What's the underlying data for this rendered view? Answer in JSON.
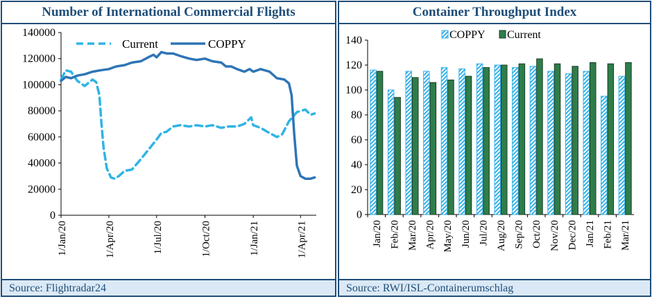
{
  "chart_data": [
    {
      "type": "line",
      "title": "Number of International Commercial Flights",
      "source": "Source:  Flightradar24",
      "ylim": [
        0,
        140000
      ],
      "yticks": [
        0,
        20000,
        40000,
        60000,
        80000,
        100000,
        120000,
        140000
      ],
      "xticks": [
        "1/Jan/20",
        "1/Apr/20",
        "1/Jul/20",
        "1/Oct/20",
        "1/Jan/21",
        "1/Apr/21"
      ],
      "legend_position": "top",
      "series": [
        {
          "name": "Current",
          "style": "dashed",
          "color": "#2fb4e6",
          "x": [
            "2020-01-01",
            "2020-01-10",
            "2020-01-20",
            "2020-02-01",
            "2020-02-15",
            "2020-03-01",
            "2020-03-08",
            "2020-03-14",
            "2020-03-18",
            "2020-03-22",
            "2020-03-28",
            "2020-04-05",
            "2020-04-12",
            "2020-04-20",
            "2020-05-01",
            "2020-05-15",
            "2020-06-01",
            "2020-06-15",
            "2020-07-01",
            "2020-07-10",
            "2020-07-20",
            "2020-08-01",
            "2020-08-15",
            "2020-09-01",
            "2020-09-15",
            "2020-10-01",
            "2020-10-15",
            "2020-11-01",
            "2020-11-15",
            "2020-12-01",
            "2020-12-15",
            "2020-12-28",
            "2021-01-01",
            "2021-01-15",
            "2021-02-01",
            "2021-02-15",
            "2021-02-25",
            "2021-03-10",
            "2021-03-25",
            "2021-04-10",
            "2021-04-20",
            "2021-04-28"
          ],
          "y": [
            104000,
            111000,
            110000,
            103000,
            99000,
            104000,
            102000,
            92000,
            70000,
            52000,
            36000,
            29000,
            28000,
            30000,
            34000,
            35000,
            43000,
            50000,
            58000,
            63000,
            64000,
            68000,
            69000,
            68000,
            69000,
            68000,
            69000,
            67000,
            68000,
            68000,
            70000,
            75000,
            69000,
            67000,
            63000,
            60000,
            62000,
            72000,
            79000,
            81000,
            77000,
            78000
          ]
        },
        {
          "name": "COPPY",
          "style": "solid",
          "color": "#2e75b6",
          "x": [
            "2020-01-01",
            "2020-01-10",
            "2020-01-20",
            "2020-02-01",
            "2020-02-15",
            "2020-03-01",
            "2020-03-15",
            "2020-04-01",
            "2020-04-15",
            "2020-05-01",
            "2020-05-15",
            "2020-06-01",
            "2020-06-15",
            "2020-06-25",
            "2020-07-01",
            "2020-07-10",
            "2020-07-20",
            "2020-08-01",
            "2020-08-15",
            "2020-09-01",
            "2020-09-15",
            "2020-10-01",
            "2020-10-15",
            "2020-11-01",
            "2020-11-10",
            "2020-11-20",
            "2020-12-01",
            "2020-12-15",
            "2020-12-25",
            "2021-01-01",
            "2021-01-15",
            "2021-02-01",
            "2021-02-15",
            "2021-03-01",
            "2021-03-10",
            "2021-03-15",
            "2021-03-20",
            "2021-03-25",
            "2021-04-01",
            "2021-04-10",
            "2021-04-20",
            "2021-04-28"
          ],
          "y": [
            103000,
            106000,
            105000,
            107000,
            108000,
            110000,
            111000,
            112000,
            114000,
            115000,
            117000,
            118000,
            121000,
            123000,
            121000,
            125000,
            124000,
            124000,
            122000,
            120000,
            119000,
            120000,
            118000,
            117000,
            114000,
            114000,
            112000,
            110000,
            112000,
            110000,
            112000,
            110000,
            105000,
            104000,
            101000,
            92000,
            62000,
            38000,
            30000,
            28000,
            28000,
            29000
          ]
        }
      ]
    },
    {
      "type": "bar",
      "title": "Container Throughput Index",
      "source": "Source: RWI/ISL-Containerumschlag",
      "ylim": [
        0,
        140
      ],
      "yticks": [
        0,
        20,
        40,
        60,
        80,
        100,
        120,
        140
      ],
      "legend_position": "top",
      "categories": [
        "Jan/20",
        "Feb/20",
        "Mar/20",
        "Apr/20",
        "May/20",
        "Jun/20",
        "Jul/20",
        "Aug/20",
        "Sep/20",
        "Oct/20",
        "Nov/20",
        "Dec/20",
        "Jan/21",
        "Feb/21",
        "Mar/21"
      ],
      "series": [
        {
          "name": "COPPY",
          "style": "hatched",
          "color": "#35b2e8",
          "values": [
            116,
            100,
            115,
            115,
            118,
            117,
            121,
            120,
            118,
            119,
            115,
            113,
            115,
            95,
            111
          ]
        },
        {
          "name": "Current",
          "style": "solid",
          "color": "#2e7d4a",
          "values": [
            115,
            94,
            110,
            106,
            108,
            111,
            118,
            120,
            121,
            125,
            121,
            119,
            122,
            121,
            122
          ]
        }
      ]
    }
  ]
}
